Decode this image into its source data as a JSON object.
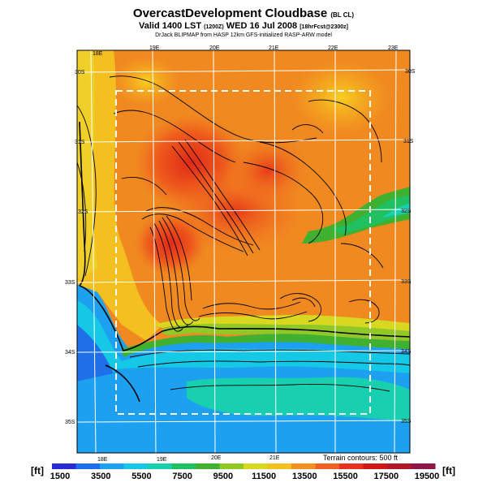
{
  "title": {
    "main": "OvercastDevelopment Cloudbase",
    "main_tag": "(BL CL)",
    "valid_line": "Valid 1400 LST",
    "valid_sub": "(1200Z)",
    "date": "WED 16 Jul 2008",
    "date_sub": "[18hrFcst@2300z]",
    "model_line": "DrJack BLIPMAP from HASP 12km GFS-initialized RASP-ARW model"
  },
  "map": {
    "lon_labels": [
      "18E",
      "19E",
      "20E",
      "21E",
      "22E",
      "23E"
    ],
    "lat_labels": [
      "30S",
      "31S",
      "32S",
      "33S",
      "34S",
      "35S"
    ],
    "terrain_note": "Terrain contours: 500 ft"
  },
  "legend": {
    "unit_left": "[ft]",
    "unit_right": "[ft]",
    "ticks": [
      "1500",
      "3500",
      "5500",
      "7500",
      "9500",
      "11500",
      "13500",
      "15500",
      "17500",
      "19500"
    ],
    "colors": [
      "#2b2bd6",
      "#1e6fe8",
      "#1ea0f0",
      "#14c8e6",
      "#18d0b0",
      "#20c060",
      "#40b030",
      "#90c828",
      "#d8d820",
      "#f4c020",
      "#f49020",
      "#f06020",
      "#e83020",
      "#d01818",
      "#b01828",
      "#901848"
    ]
  }
}
